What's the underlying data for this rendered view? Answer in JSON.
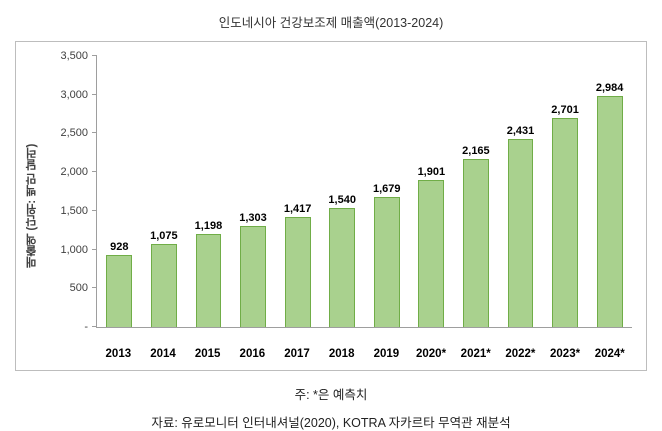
{
  "notes": {
    "note": "주: *은 예측치",
    "source": "자료: 유로모니터 인터내셔널(2020), KOTRA 자카르타 무역관 재분석"
  },
  "chart_data": {
    "type": "bar",
    "title": "인도네시아 건강보조제 매출액(2013-2024)",
    "categories": [
      "2013",
      "2014",
      "2015",
      "2016",
      "2017",
      "2018",
      "2019",
      "2020*",
      "2021*",
      "2022*",
      "2023*",
      "2024*"
    ],
    "values": [
      928,
      1075,
      1198,
      1303,
      1417,
      1540,
      1679,
      1901,
      2165,
      2431,
      2701,
      2984
    ],
    "value_labels": [
      "928",
      "1,075",
      "1,198",
      "1,303",
      "1,417",
      "1,540",
      "1,679",
      "1,901",
      "2,165",
      "2,431",
      "2,701",
      "2,984"
    ],
    "xlabel": "",
    "ylabel": "매출액 (단위: 백만 달러)",
    "ylim": [
      0,
      3500
    ],
    "yticks": [
      {
        "label": "-",
        "value": 0
      },
      {
        "label": "500",
        "value": 500
      },
      {
        "label": "1,000",
        "value": 1000
      },
      {
        "label": "1,500",
        "value": 1500
      },
      {
        "label": "2,000",
        "value": 2000
      },
      {
        "label": "2,500",
        "value": 2500
      },
      {
        "label": "3,000",
        "value": 3000
      },
      {
        "label": "3,500",
        "value": 3500
      }
    ],
    "grid": false,
    "legend_position": "none",
    "bar_fill": "#a9d18e",
    "bar_border": "#70ad47"
  }
}
